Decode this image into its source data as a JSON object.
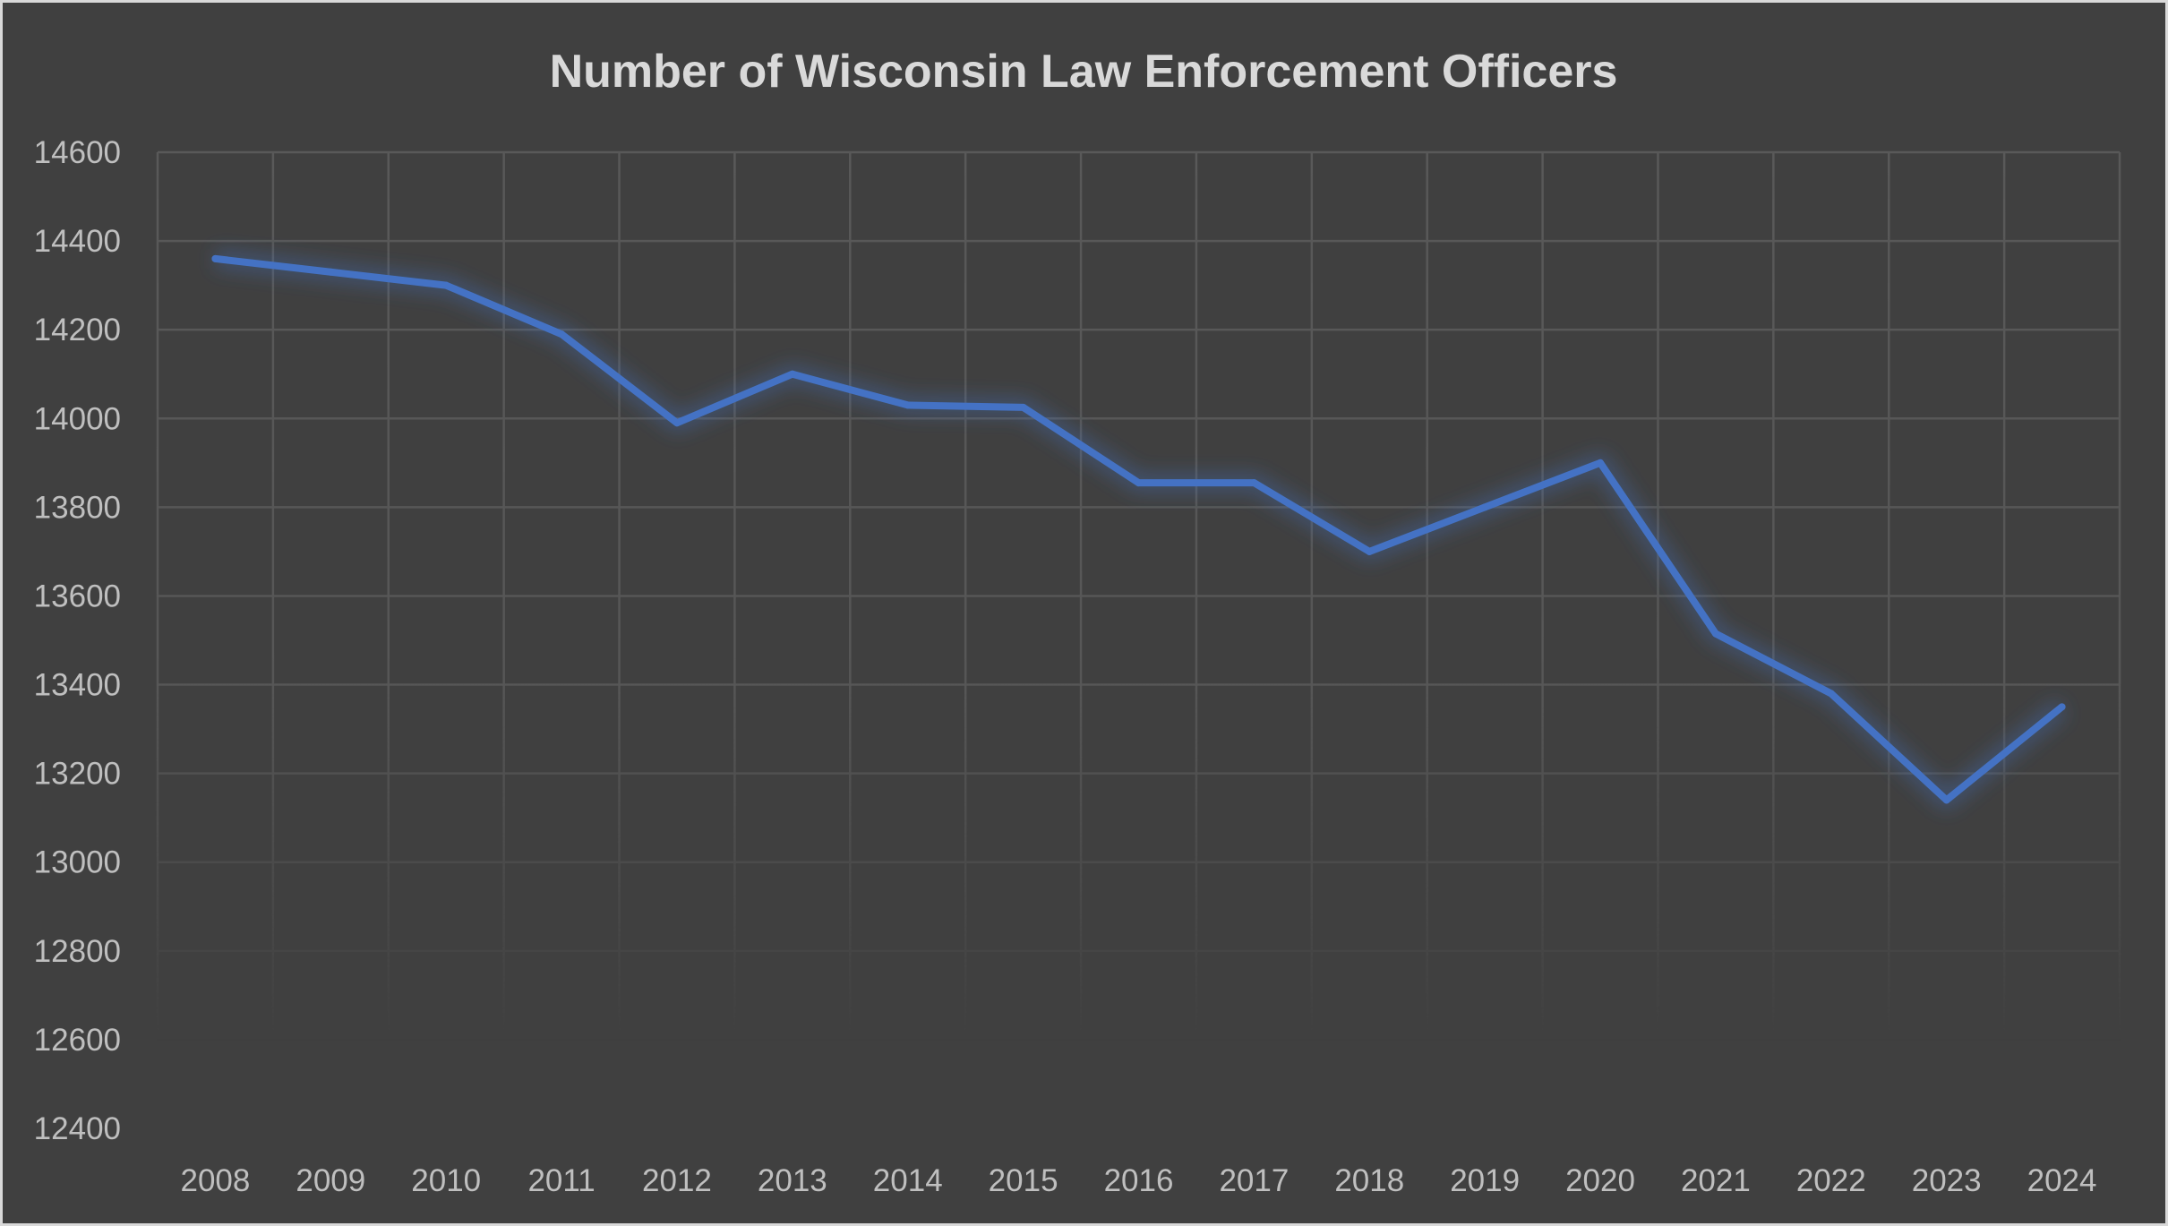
{
  "chart_data": {
    "type": "line",
    "title": "Number of Wisconsin Law Enforcement Officers",
    "xlabel": "",
    "ylabel": "",
    "categories": [
      "2008",
      "2009",
      "2010",
      "2011",
      "2012",
      "2013",
      "2014",
      "2015",
      "2016",
      "2017",
      "2018",
      "2019",
      "2020",
      "2021",
      "2022",
      "2023",
      "2024"
    ],
    "series": [
      {
        "values": [
          14360,
          14330,
          14300,
          14190,
          13990,
          14100,
          14030,
          14025,
          13855,
          13855,
          13700,
          13800,
          13900,
          13515,
          13380,
          13140,
          13350
        ]
      }
    ],
    "ylim": [
      12400,
      14600
    ],
    "yticks": [
      14600,
      14400,
      14200,
      14000,
      13800,
      13600,
      13400,
      13200,
      13000,
      12800,
      12600,
      12400
    ],
    "grid": true,
    "legend": "none",
    "colors": {
      "line": "#4472c4",
      "background": "#404040",
      "grid": "#595959",
      "text": "#bfbfbf"
    }
  }
}
